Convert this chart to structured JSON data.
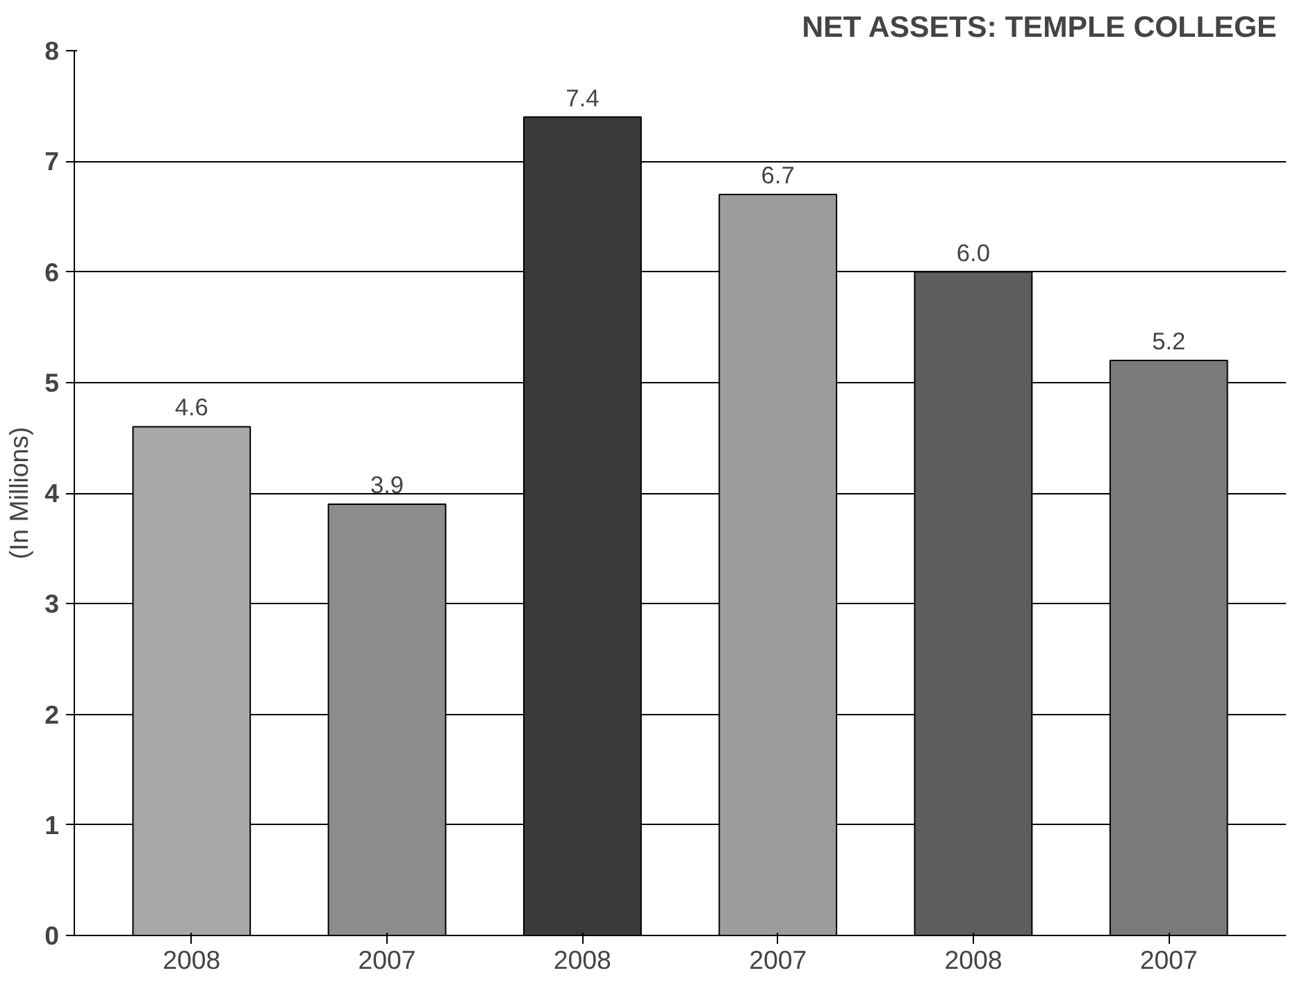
{
  "chart_data": {
    "type": "bar",
    "title": "NET ASSETS:  TEMPLE COLLEGE",
    "ylabel": "(In Millions)",
    "categories": [
      "2008",
      "2007",
      "2008",
      "2007",
      "2008",
      "2007"
    ],
    "values": [
      4.6,
      3.9,
      7.4,
      6.7,
      6.0,
      5.2
    ],
    "colors": [
      "#a8a8a8",
      "#8c8c8c",
      "#3a3a3a",
      "#9c9c9c",
      "#5e5e5e",
      "#7a7a7a"
    ],
    "ylim": [
      0,
      8
    ],
    "yticks": [
      0,
      1,
      2,
      3,
      4,
      5,
      6,
      7,
      8
    ],
    "grid": "y",
    "value_labels": [
      "4.6",
      "3.9",
      "7.4",
      "6.7",
      "6.0",
      "5.2"
    ]
  }
}
